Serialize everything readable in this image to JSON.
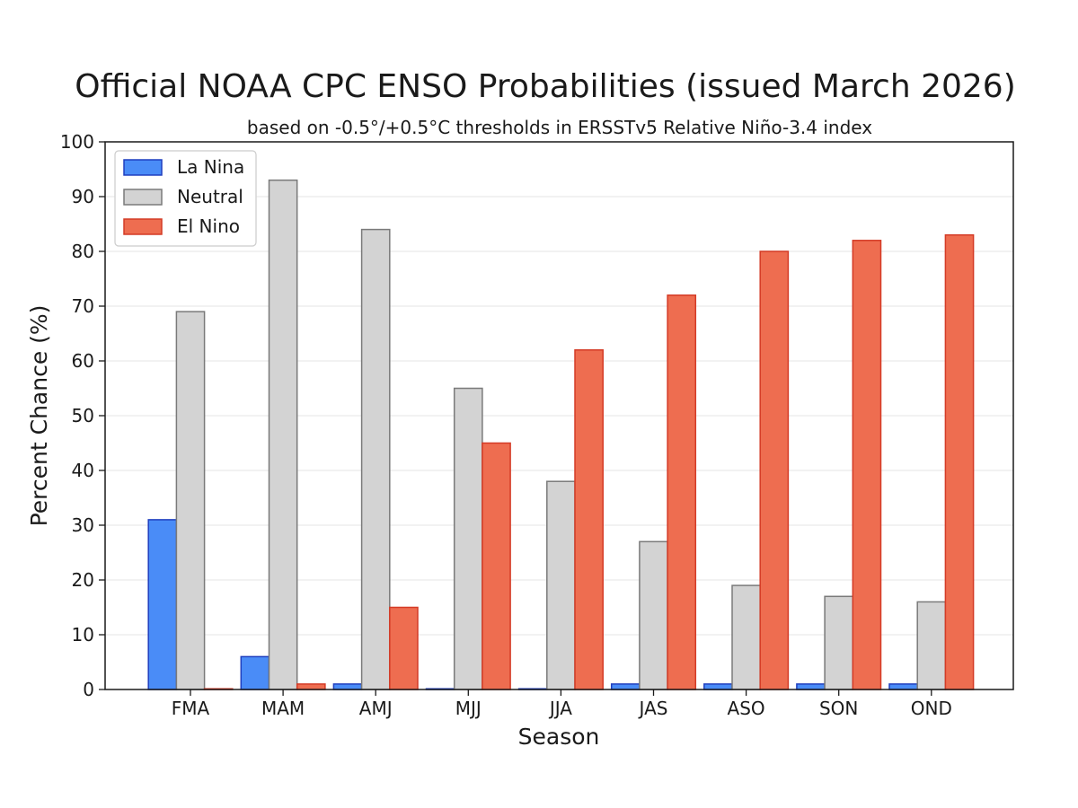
{
  "chart_data": {
    "type": "bar",
    "title": "Official NOAA CPC ENSO Probabilities (issued March 2026)",
    "subtitle": "based on -0.5°/+0.5°C thresholds in ERSSTv5 Relative Niño-3.4 index",
    "xlabel": "Season",
    "ylabel": "Percent Chance (%)",
    "ylim": [
      0,
      100
    ],
    "yticks": [
      0,
      10,
      20,
      30,
      40,
      50,
      60,
      70,
      80,
      90,
      100
    ],
    "grid": true,
    "legend_position": "top-left",
    "categories": [
      "FMA",
      "MAM",
      "AMJ",
      "MJJ",
      "JJA",
      "JAS",
      "ASO",
      "SON",
      "OND"
    ],
    "series": [
      {
        "name": "La Nina",
        "color": "#4a8cf7",
        "edge": "#1f3fbf",
        "values": [
          31,
          6,
          1,
          0,
          0,
          1,
          1,
          1,
          1
        ]
      },
      {
        "name": "Neutral",
        "color": "#d3d3d3",
        "edge": "#7a7a7a",
        "values": [
          69,
          93,
          84,
          55,
          38,
          27,
          19,
          17,
          16
        ]
      },
      {
        "name": "El Nino",
        "color": "#ee6d50",
        "edge": "#d43b26",
        "values": [
          0,
          1,
          15,
          45,
          62,
          72,
          80,
          82,
          83
        ]
      }
    ]
  }
}
